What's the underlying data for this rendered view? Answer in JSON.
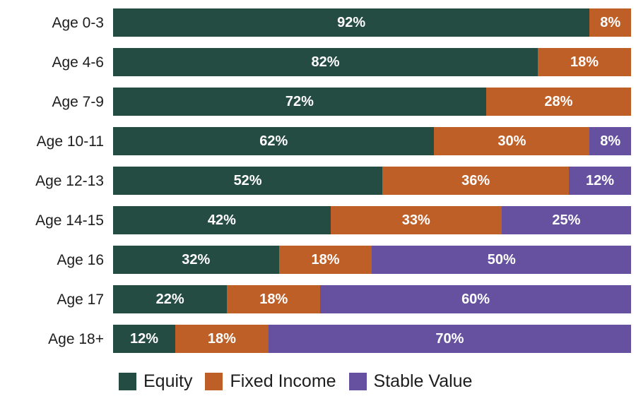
{
  "chart_data": {
    "type": "bar",
    "orientation": "horizontal",
    "stacked": true,
    "title": "",
    "xlabel": "",
    "ylabel": "",
    "xlim": [
      0,
      100
    ],
    "grid": false,
    "value_suffix": "%",
    "legend_position": "bottom",
    "categories": [
      "Age 0-3",
      "Age 4-6",
      "Age 7-9",
      "Age 10-11",
      "Age 12-13",
      "Age 14-15",
      "Age 16",
      "Age 17",
      "Age 18+"
    ],
    "series": [
      {
        "name": "Equity",
        "color": "#254C43",
        "values": [
          92,
          82,
          72,
          62,
          52,
          42,
          32,
          22,
          12
        ]
      },
      {
        "name": "Fixed Income",
        "color": "#BF5F28",
        "values": [
          8,
          18,
          28,
          30,
          36,
          33,
          18,
          18,
          18
        ]
      },
      {
        "name": "Stable Value",
        "color": "#65519F",
        "values": [
          0,
          0,
          0,
          8,
          12,
          25,
          50,
          60,
          70
        ]
      }
    ],
    "colors": {
      "bar_value_text": "#ffffff",
      "category_label_text": "#1d1d1d",
      "legend_text": "#1d1d1d",
      "background": "#ffffff"
    }
  }
}
